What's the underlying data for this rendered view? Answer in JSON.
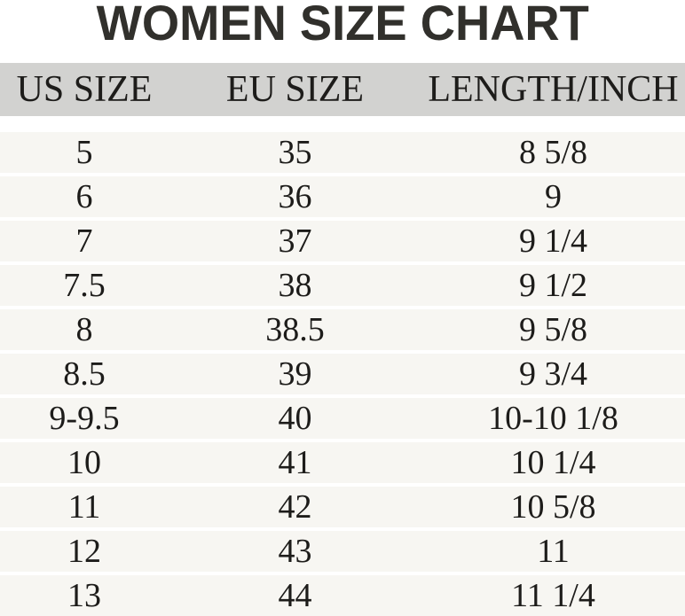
{
  "title": "WOMEN SIZE CHART",
  "chart_data": {
    "type": "table",
    "title": "WOMEN SIZE CHART",
    "columns": [
      "US SIZE",
      "EU SIZE",
      "LENGTH/INCH"
    ],
    "rows": [
      [
        "5",
        "35",
        "8 5/8"
      ],
      [
        "6",
        "36",
        "9"
      ],
      [
        "7",
        "37",
        "9 1/4"
      ],
      [
        "7.5",
        "38",
        "9 1/2"
      ],
      [
        "8",
        "38.5",
        "9 5/8"
      ],
      [
        "8.5",
        "39",
        "9 3/4"
      ],
      [
        "9-9.5",
        "40",
        "10-10 1/8"
      ],
      [
        "10",
        "41",
        "10 1/4"
      ],
      [
        "11",
        "42",
        "10 5/8"
      ],
      [
        "12",
        "43",
        "11"
      ],
      [
        "13",
        "44",
        "11 1/4"
      ]
    ]
  },
  "colors": {
    "header_bg": "#d2d2d0",
    "row_bg": "#f7f6f2",
    "title_color": "#31302c",
    "text_color": "#1d1c1a",
    "background": "#ffffff"
  }
}
